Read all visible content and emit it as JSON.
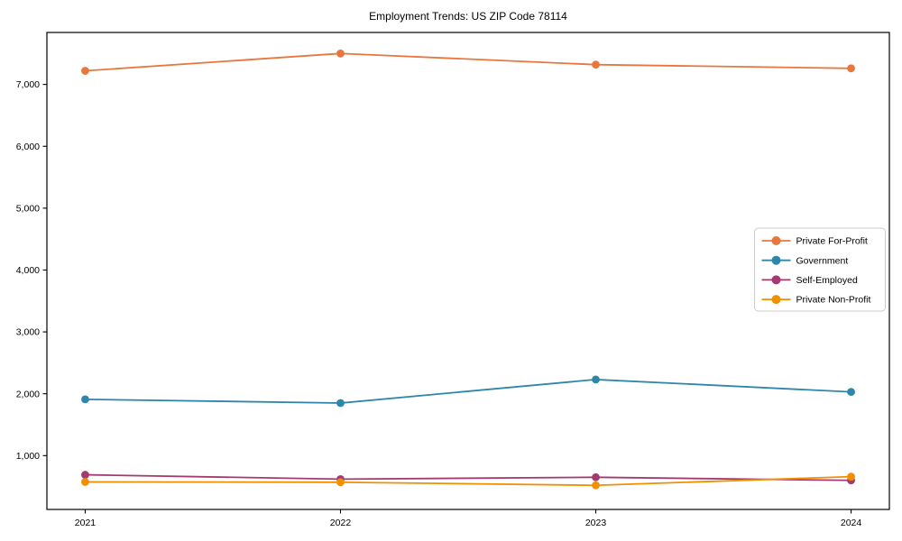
{
  "chart_data": {
    "type": "line",
    "title": "Employment Trends: US ZIP Code 78114",
    "x": [
      2021,
      2022,
      2023,
      2024
    ],
    "x_tick_labels": [
      "2021",
      "2022",
      "2023",
      "2024"
    ],
    "series": [
      {
        "name": "Private For-Profit",
        "color": "#E8773D",
        "values": [
          7220,
          7500,
          7320,
          7260
        ]
      },
      {
        "name": "Government",
        "color": "#2E86AB",
        "values": [
          1910,
          1850,
          2230,
          2030
        ]
      },
      {
        "name": "Self-Employed",
        "color": "#A23B72",
        "values": [
          690,
          620,
          650,
          600
        ]
      },
      {
        "name": "Private Non-Profit",
        "color": "#F18F01",
        "values": [
          575,
          570,
          520,
          660
        ]
      }
    ],
    "y_ticks": [
      1000,
      2000,
      3000,
      4000,
      5000,
      6000,
      7000
    ],
    "y_tick_labels": [
      "1,000",
      "2,000",
      "3,000",
      "4,000",
      "5,000",
      "6,000",
      "7,000"
    ],
    "xlim": [
      2020.85,
      2024.15
    ],
    "ylim": [
      130,
      7840
    ],
    "grid": false,
    "legend_position": "center-right",
    "marker": "circle",
    "background_color": "#ffffff",
    "axis_color": "#000000",
    "legend_border_color": "#cccccc"
  }
}
